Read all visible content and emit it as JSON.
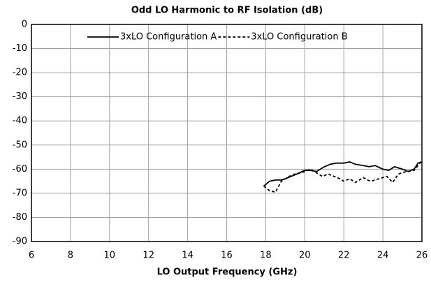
{
  "chart_data": {
    "type": "line",
    "title": "Odd LO Harmonic to RF Isolation (dB)",
    "x_label": "LO Output Frequency (GHz)",
    "xlim": [
      6,
      26
    ],
    "xticks": [
      6,
      8,
      10,
      12,
      14,
      16,
      18,
      20,
      22,
      24,
      26
    ],
    "ylim": [
      -90,
      0
    ],
    "yticks": [
      0,
      -10,
      -20,
      -30,
      -40,
      -50,
      -60,
      -70,
      -80,
      -90
    ],
    "grid": true,
    "legend": "top",
    "series": [
      {
        "name": "3xLO Configuration A",
        "color": "#000000",
        "dash": false,
        "x": [
          17.9,
          18.2,
          18.5,
          18.8,
          19.0,
          19.3,
          19.6,
          20.0,
          20.3,
          20.6,
          21.0,
          21.3,
          21.6,
          22.0,
          22.3,
          22.6,
          23.0,
          23.3,
          23.6,
          24.0,
          24.3,
          24.6,
          25.0,
          25.3,
          25.6,
          25.8,
          26.0
        ],
        "values": [
          -67,
          -65,
          -64.5,
          -64.5,
          -64,
          -63,
          -62,
          -60.5,
          -60.5,
          -61,
          -59,
          -58,
          -57.5,
          -57.5,
          -57,
          -58,
          -58.5,
          -59,
          -58.5,
          -60,
          -60.5,
          -59,
          -60,
          -61,
          -60,
          -57.5,
          -57
        ]
      },
      {
        "name": "3xLO Configuration B",
        "color": "#000000",
        "dash": true,
        "x": [
          17.9,
          18.2,
          18.5,
          18.8,
          19.2,
          19.5,
          19.8,
          20.0,
          20.3,
          20.6,
          20.9,
          21.2,
          21.5,
          21.8,
          22.0,
          22.3,
          22.6,
          23.0,
          23.2,
          23.4,
          23.8,
          24.2,
          24.5,
          24.8,
          25.2,
          25.6,
          26.0
        ],
        "values": [
          -67,
          -69,
          -69.5,
          -65,
          -63,
          -62,
          -61.5,
          -61,
          -60,
          -61.5,
          -63,
          -62,
          -63,
          -64,
          -65,
          -64,
          -65.5,
          -63.5,
          -64.5,
          -65,
          -64,
          -63,
          -65.5,
          -62,
          -61,
          -60.5,
          -56.5
        ]
      }
    ]
  }
}
